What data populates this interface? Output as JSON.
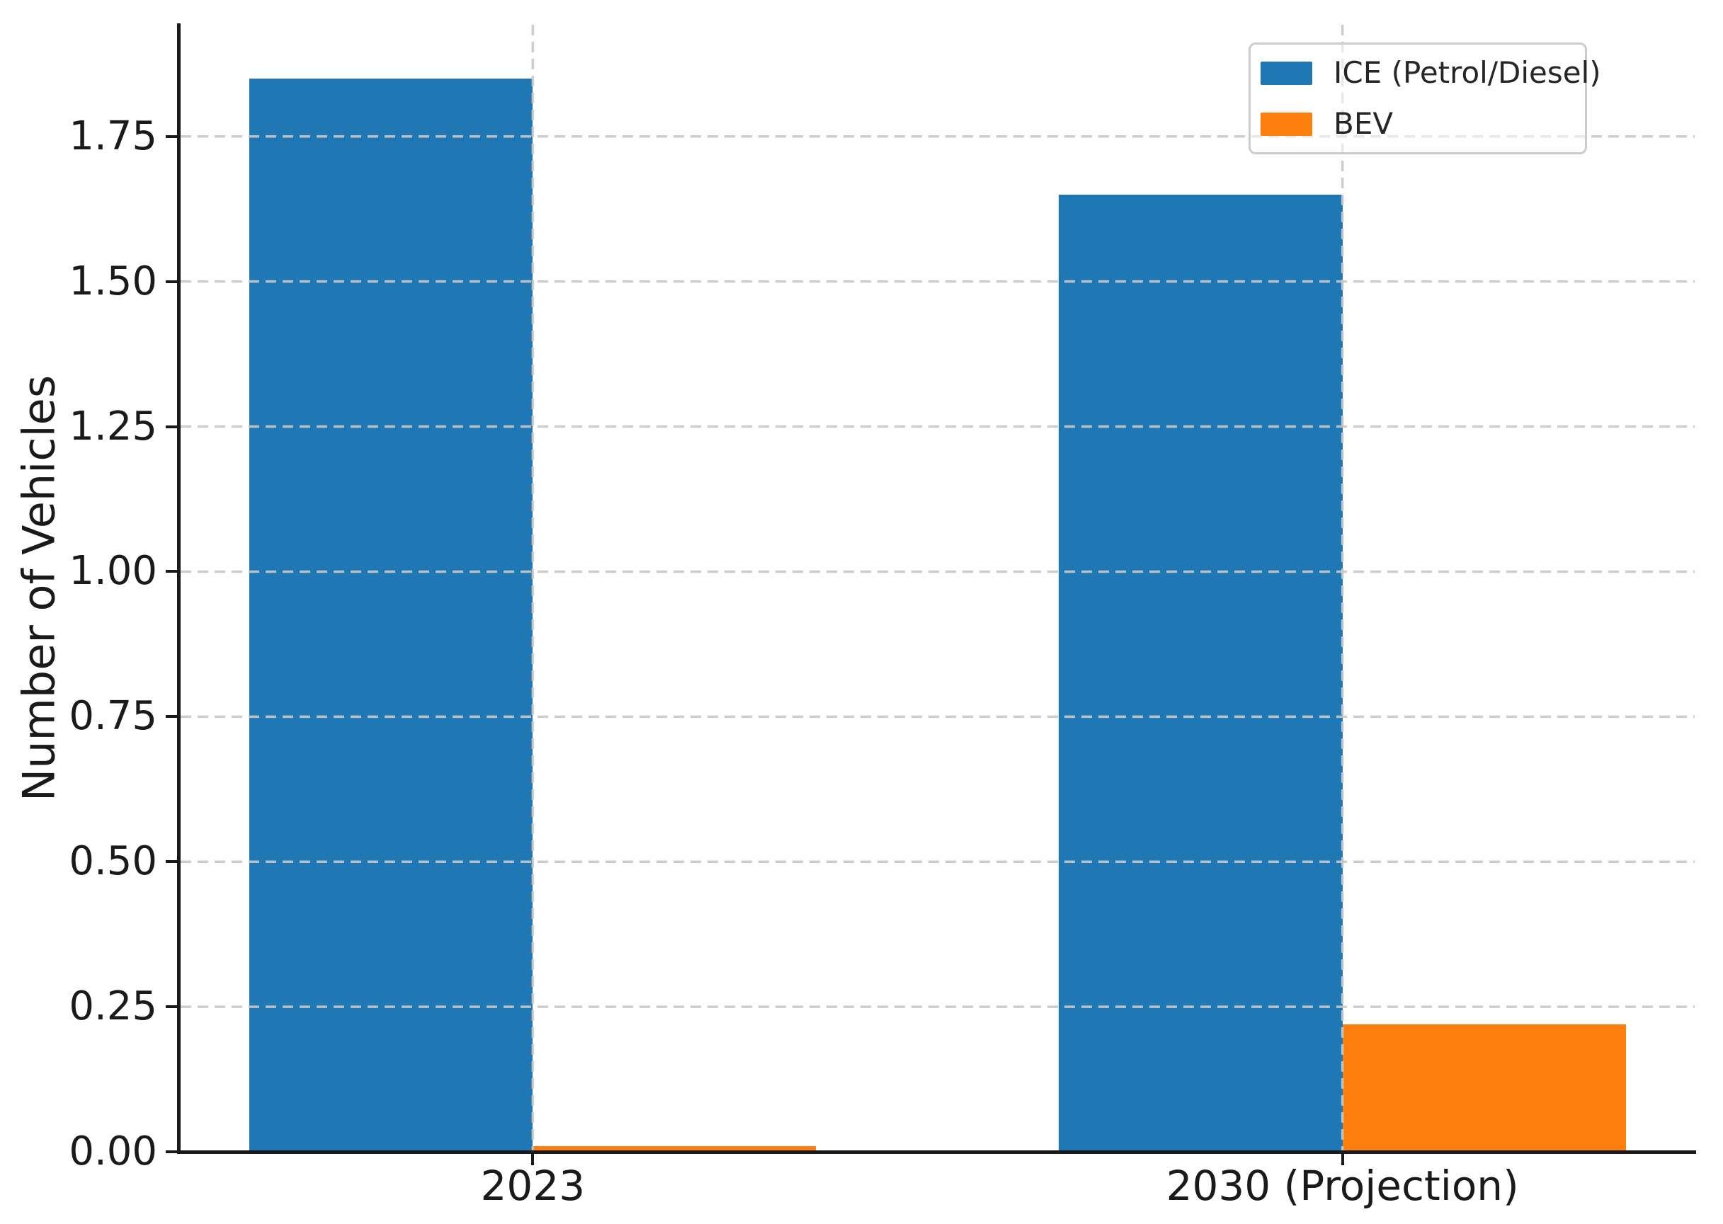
{
  "chart_data": {
    "type": "bar",
    "title": "",
    "ylabel": "Number of Vehicles",
    "xlabel": "",
    "categories": [
      "2023",
      "2030 (Projection)"
    ],
    "series": [
      {
        "name": "ICE (Petrol/Diesel)",
        "color": "#1f77b4",
        "values": [
          1.85,
          1.65
        ]
      },
      {
        "name": "BEV",
        "color": "#ff7f0e",
        "values": [
          0.01,
          0.22
        ]
      }
    ],
    "bar_width": 0.35,
    "ylim": [
      0,
      1.9425
    ],
    "xlim": [
      -0.435,
      1.435
    ],
    "yticks": [
      0,
      0.25,
      0.5,
      0.75,
      1.0,
      1.25,
      1.5,
      1.75
    ],
    "ytick_labels": [
      "0.00",
      "0.25",
      "0.50",
      "0.75",
      "1.00",
      "1.25",
      "1.50",
      "1.75"
    ],
    "grid": {
      "visible": true,
      "style": "dashed",
      "color": "#c8c8c8",
      "axes": "both"
    },
    "legend": {
      "location": "upper right",
      "entries": [
        "ICE (Petrol/Diesel)",
        "BEV"
      ],
      "border_color": "#cccccc"
    },
    "spine_color": "#1a1a1a",
    "text_color": "#1a1a1a",
    "background": "#ffffff"
  }
}
